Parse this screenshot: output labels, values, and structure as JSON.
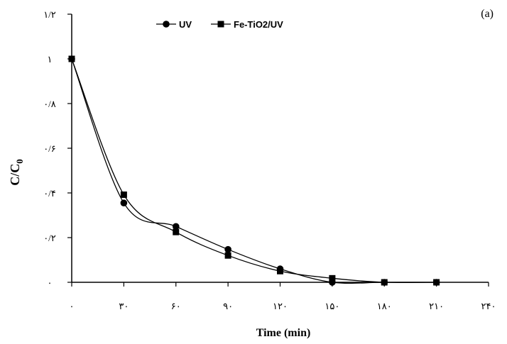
{
  "chart_data": {
    "type": "line",
    "panel_label": "(a)",
    "xlabel": "Time (min)",
    "ylabel_main": "C/C",
    "ylabel_sub": "0",
    "x_ticks": [
      0,
      30,
      60,
      90,
      120,
      150,
      180,
      210,
      240
    ],
    "x_tick_labels": [
      "۰",
      "۳۰",
      "۶۰",
      "۹۰",
      "۱۲۰",
      "۱۵۰",
      "۱۸۰",
      "۲۱۰",
      "۲۴۰"
    ],
    "y_ticks": [
      0,
      0.2,
      0.4,
      0.6,
      0.8,
      1.0,
      1.2
    ],
    "y_tick_labels": [
      "۰",
      "۰/۲",
      "۰/۴",
      "۰/۶",
      "۰/۸",
      "۱",
      "۱/۲"
    ],
    "xlim": [
      0,
      240
    ],
    "ylim": [
      0,
      1.2
    ],
    "grid": false,
    "legend_position": "top",
    "series": [
      {
        "name": "UV",
        "marker": "circle",
        "x": [
          0,
          30,
          60,
          90,
          120,
          150,
          180,
          210
        ],
        "values": [
          1.0,
          0.355,
          0.25,
          0.147,
          0.06,
          0.0,
          0.0,
          0.0
        ]
      },
      {
        "name": "Fe-TiO2/UV",
        "marker": "square",
        "x": [
          0,
          30,
          60,
          90,
          120,
          150,
          180,
          210
        ],
        "values": [
          1.0,
          0.392,
          0.225,
          0.12,
          0.05,
          0.018,
          0.0,
          0.0
        ]
      }
    ]
  }
}
